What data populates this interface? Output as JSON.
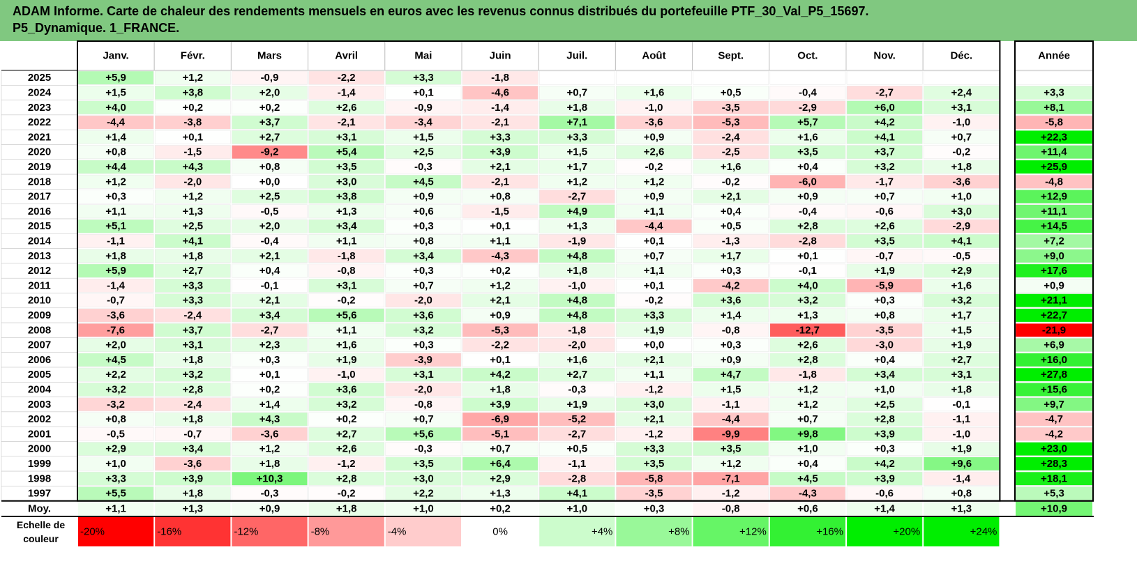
{
  "title": {
    "line1": "ADAM Informe. Carte de chaleur des rendements mensuels en euros avec les revenus connus distribués du portefeuille PTF_30_Val_P5_15697.",
    "line2": "P5_Dynamique. 1_FRANCE."
  },
  "chart_data": {
    "type": "heatmap",
    "columns": [
      "Janv.",
      "Févr.",
      "Mars",
      "Avril",
      "Mai",
      "Juin",
      "Juil.",
      "Août",
      "Sept.",
      "Oct.",
      "Nov.",
      "Déc."
    ],
    "year_column": "Année",
    "rows": [
      {
        "label": "2025",
        "values": [
          5.9,
          1.2,
          -0.9,
          -2.2,
          3.3,
          -1.8,
          null,
          null,
          null,
          null,
          null,
          null
        ],
        "year": null
      },
      {
        "label": "2024",
        "values": [
          1.5,
          3.8,
          2.0,
          -1.4,
          0.1,
          -4.6,
          0.7,
          1.6,
          0.5,
          -0.4,
          -2.7,
          2.4
        ],
        "year": 3.3
      },
      {
        "label": "2023",
        "values": [
          4.0,
          0.2,
          0.2,
          2.6,
          -0.9,
          -1.4,
          1.8,
          -1.0,
          -3.5,
          -2.9,
          6.0,
          3.1
        ],
        "year": 8.1
      },
      {
        "label": "2022",
        "values": [
          -4.4,
          -3.8,
          3.7,
          -2.1,
          -3.4,
          -2.1,
          7.1,
          -3.6,
          -5.3,
          5.7,
          4.2,
          -1.0
        ],
        "year": -5.8
      },
      {
        "label": "2021",
        "values": [
          1.4,
          0.1,
          2.7,
          3.1,
          1.5,
          3.3,
          3.3,
          0.9,
          -2.4,
          1.6,
          4.1,
          0.7
        ],
        "year": 22.3
      },
      {
        "label": "2020",
        "values": [
          0.8,
          -1.5,
          -9.2,
          5.4,
          2.5,
          3.9,
          1.5,
          2.6,
          -2.5,
          3.5,
          3.7,
          -0.2
        ],
        "year": 11.4
      },
      {
        "label": "2019",
        "values": [
          4.4,
          4.3,
          0.8,
          3.5,
          -0.3,
          2.1,
          1.7,
          -0.2,
          1.6,
          0.4,
          3.2,
          1.8
        ],
        "year": 25.9
      },
      {
        "label": "2018",
        "values": [
          1.2,
          -2.0,
          0.0,
          3.0,
          4.5,
          -2.1,
          1.2,
          1.2,
          -0.2,
          -6.0,
          -1.7,
          -3.6
        ],
        "year": -4.8
      },
      {
        "label": "2017",
        "values": [
          0.3,
          1.2,
          2.5,
          3.8,
          0.9,
          0.8,
          -2.7,
          0.9,
          2.1,
          0.9,
          0.7,
          1.0
        ],
        "year": 12.9
      },
      {
        "label": "2016",
        "values": [
          1.1,
          1.3,
          -0.5,
          1.3,
          0.6,
          -1.5,
          4.9,
          1.1,
          0.4,
          -0.4,
          -0.6,
          3.0
        ],
        "year": 11.1
      },
      {
        "label": "2015",
        "values": [
          5.1,
          2.5,
          2.0,
          3.4,
          0.3,
          0.1,
          1.3,
          -4.4,
          0.5,
          2.8,
          2.6,
          -2.9
        ],
        "year": 14.5
      },
      {
        "label": "2014",
        "values": [
          -1.1,
          4.1,
          -0.4,
          1.1,
          0.8,
          1.1,
          -1.9,
          0.1,
          -1.3,
          -2.8,
          3.5,
          4.1
        ],
        "year": 7.2
      },
      {
        "label": "2013",
        "values": [
          1.8,
          1.8,
          2.1,
          -1.8,
          3.4,
          -4.3,
          4.8,
          0.7,
          1.7,
          0.1,
          -0.7,
          -0.5
        ],
        "year": 9.0
      },
      {
        "label": "2012",
        "values": [
          5.9,
          2.7,
          0.4,
          -0.8,
          0.3,
          0.2,
          1.8,
          1.1,
          0.3,
          -0.1,
          1.9,
          2.9
        ],
        "year": 17.6
      },
      {
        "label": "2011",
        "values": [
          -1.4,
          3.3,
          -0.1,
          3.1,
          0.7,
          1.2,
          -1.0,
          0.1,
          -4.2,
          4.0,
          -5.9,
          1.6
        ],
        "year": 0.9
      },
      {
        "label": "2010",
        "values": [
          -0.7,
          3.3,
          2.1,
          -0.2,
          -2.0,
          2.1,
          4.8,
          -0.2,
          3.6,
          3.2,
          0.3,
          3.2
        ],
        "year": 21.1
      },
      {
        "label": "2009",
        "values": [
          -3.6,
          -2.4,
          3.4,
          5.6,
          3.6,
          0.9,
          4.8,
          3.3,
          1.4,
          1.3,
          0.8,
          1.7
        ],
        "year": 22.7
      },
      {
        "label": "2008",
        "values": [
          -7.6,
          3.7,
          -2.7,
          1.1,
          3.2,
          -5.3,
          -1.8,
          1.9,
          -0.8,
          -12.7,
          -3.5,
          1.5
        ],
        "year": -21.9
      },
      {
        "label": "2007",
        "values": [
          2.0,
          3.1,
          2.3,
          1.6,
          0.3,
          -2.2,
          -2.0,
          0.0,
          0.3,
          2.6,
          -3.0,
          1.9
        ],
        "year": 6.9
      },
      {
        "label": "2006",
        "values": [
          4.5,
          1.8,
          0.3,
          1.9,
          -3.9,
          0.1,
          1.6,
          2.1,
          0.9,
          2.8,
          0.4,
          2.7
        ],
        "year": 16.0
      },
      {
        "label": "2005",
        "values": [
          2.2,
          3.2,
          0.1,
          -1.0,
          3.1,
          4.2,
          2.7,
          1.1,
          4.7,
          -1.8,
          3.4,
          3.1
        ],
        "year": 27.8
      },
      {
        "label": "2004",
        "values": [
          3.2,
          2.8,
          0.2,
          3.6,
          -2.0,
          1.8,
          -0.3,
          -1.2,
          1.5,
          1.2,
          1.0,
          1.8
        ],
        "year": 15.6
      },
      {
        "label": "2003",
        "values": [
          -3.2,
          -2.4,
          1.4,
          3.2,
          -0.8,
          3.9,
          1.9,
          3.0,
          -1.1,
          1.2,
          2.5,
          -0.1
        ],
        "year": 9.7
      },
      {
        "label": "2002",
        "values": [
          0.8,
          1.8,
          4.3,
          0.2,
          0.7,
          -6.9,
          -5.2,
          2.1,
          -4.4,
          0.7,
          2.8,
          -1.1
        ],
        "year": -4.7
      },
      {
        "label": "2001",
        "values": [
          -0.5,
          -0.7,
          -3.6,
          2.7,
          5.6,
          -5.1,
          -2.7,
          -1.2,
          -9.9,
          9.8,
          3.9,
          -1.0
        ],
        "year": -4.2
      },
      {
        "label": "2000",
        "values": [
          2.9,
          3.4,
          1.2,
          2.6,
          -0.3,
          0.7,
          0.5,
          3.3,
          3.5,
          1.0,
          0.3,
          1.9
        ],
        "year": 23.0
      },
      {
        "label": "1999",
        "values": [
          1.0,
          -3.6,
          1.8,
          -1.2,
          3.5,
          6.4,
          -1.1,
          3.5,
          1.2,
          0.4,
          4.2,
          9.6
        ],
        "year": 28.3
      },
      {
        "label": "1998",
        "values": [
          3.3,
          3.9,
          10.3,
          2.8,
          3.0,
          2.9,
          -2.8,
          -5.8,
          -7.1,
          4.5,
          3.9,
          -1.4
        ],
        "year": 18.1
      },
      {
        "label": "1997",
        "values": [
          5.5,
          1.8,
          -0.3,
          -0.2,
          2.2,
          1.3,
          4.1,
          -3.5,
          -1.2,
          -4.3,
          -0.6,
          0.8
        ],
        "year": 5.3
      }
    ],
    "average": {
      "label": "Moy.",
      "values": [
        1.1,
        1.3,
        0.9,
        1.8,
        1.0,
        0.2,
        1.0,
        0.3,
        -0.8,
        0.6,
        1.4,
        1.3
      ],
      "year": 10.9
    },
    "scale": {
      "label_line1": "Echelle de",
      "label_line2": "couleur",
      "steps": [
        -20,
        -16,
        -12,
        -8,
        -4,
        0,
        4,
        8,
        12,
        16,
        20,
        24
      ],
      "labels": [
        "-20%",
        "-16%",
        "-12%",
        "-8%",
        "-4%",
        "0%",
        "+4%",
        "+8%",
        "+12%",
        "+16%",
        "+20%",
        "+24%"
      ]
    },
    "colors": {
      "negative": "#ff0000",
      "positive": "#00ee00",
      "neutral": "#ffffff",
      "border": "#000000",
      "grid": "#c0c0c0"
    }
  }
}
